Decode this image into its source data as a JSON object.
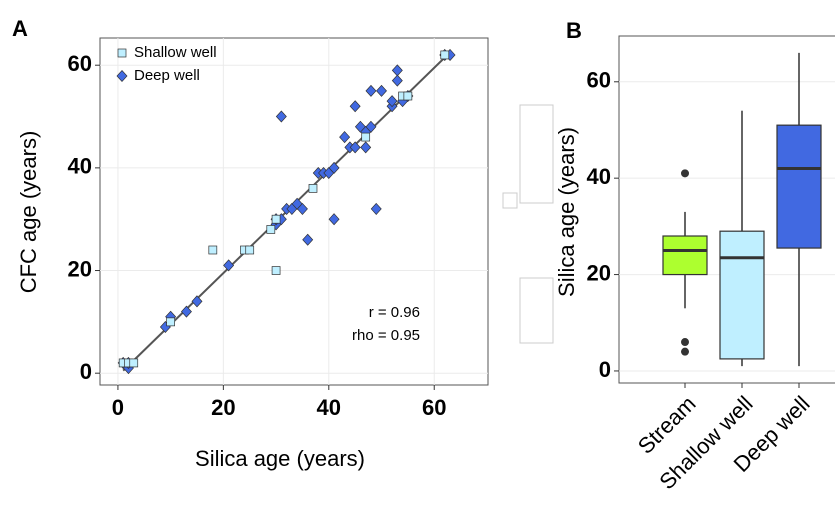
{
  "chart_data": [
    {
      "type": "scatter",
      "panel_label": "A",
      "xlabel": "Silica age (years)",
      "ylabel": "CFC age (years)",
      "xlim": [
        -3.4,
        70.2
      ],
      "ylim": [
        -2.3,
        65.3
      ],
      "xticks": [
        0,
        20,
        40,
        60
      ],
      "yticks": [
        0,
        20,
        40,
        60
      ],
      "grid": true,
      "legend": "top-left",
      "series": [
        {
          "name": "Shallow well",
          "color": "#bfefff",
          "marker": "square",
          "x": [
            1,
            2,
            3,
            10,
            18,
            24,
            25,
            29,
            30,
            30,
            37,
            47,
            54,
            55,
            62
          ],
          "values": [
            2,
            2,
            2,
            10,
            24,
            24,
            24,
            28,
            20,
            30,
            36,
            46,
            54,
            54,
            62
          ]
        },
        {
          "name": "Deep well",
          "color": "#4169e1",
          "marker": "diamond",
          "x": [
            1,
            2,
            2,
            9,
            10,
            13,
            15,
            21,
            30,
            30,
            31,
            31,
            32,
            33,
            34,
            35,
            36,
            38,
            39,
            40,
            41,
            41,
            43,
            44,
            45,
            45,
            46,
            47,
            47,
            48,
            48,
            49,
            50,
            52,
            52,
            53,
            53,
            54,
            55,
            62,
            63
          ],
          "values": [
            2,
            1,
            2,
            9,
            11,
            12,
            14,
            21,
            29,
            30,
            30,
            50,
            32,
            32,
            33,
            32,
            26,
            39,
            39,
            39,
            40,
            30,
            46,
            44,
            52,
            44,
            48,
            47,
            44,
            55,
            48,
            32,
            55,
            52,
            53,
            59,
            57,
            53,
            54,
            62,
            62
          ]
        }
      ],
      "fit": {
        "color": "#555555",
        "x": [
          1,
          63
        ],
        "values": [
          0.5,
          62.5
        ]
      },
      "annotations": [
        "r = 0.96",
        "rho = 0.95"
      ]
    },
    {
      "type": "box",
      "panel_label": "B",
      "ylabel": "Silica age (years)",
      "ylim": [
        -2.5,
        69.5
      ],
      "yticks": [
        0,
        20,
        40,
        60
      ],
      "grid": true,
      "categories": [
        "Stream",
        "Shallow well",
        "Deep well"
      ],
      "colors": [
        "#adff2f",
        "#bfefff",
        "#4169e1"
      ],
      "low": [
        13,
        1,
        1
      ],
      "q1": [
        20,
        2.5,
        25.5
      ],
      "median": [
        25,
        23.5,
        42
      ],
      "q3": [
        28,
        29,
        51
      ],
      "high": [
        33,
        54,
        66
      ],
      "outliers": [
        [
          41,
          6,
          4
        ],
        [],
        []
      ]
    }
  ]
}
